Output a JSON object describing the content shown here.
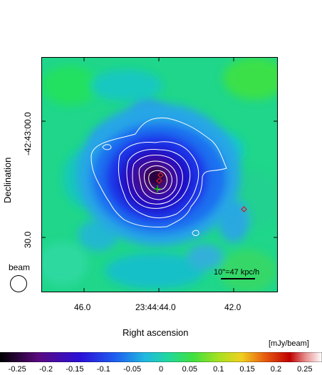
{
  "chart_data": {
    "type": "heatmap",
    "xlabel": "Right ascension",
    "ylabel": "Declination",
    "x_ticks": [
      "46.0",
      "23:44:44.0",
      "42.0"
    ],
    "y_ticks": [
      "-42:43:00.0",
      "30.0"
    ],
    "colorbar": {
      "unit": "[mJy/beam]",
      "ticks": [
        -0.25,
        -0.2,
        -0.15,
        -0.1,
        -0.05,
        0,
        0.05,
        0.1,
        0.15,
        0.2,
        0.25
      ],
      "tick_labels": [
        "-0.25",
        "-0.2",
        "-0.15",
        "-0.1",
        "-0.05",
        "0",
        "0.05",
        "0.1",
        "0.15",
        "0.2",
        "0.25"
      ],
      "range": [
        -0.28,
        0.28
      ]
    },
    "beam_label": "beam",
    "scale_bar_label": "10\"=47 kpc/h",
    "colors": {
      "background": "#00dd70",
      "contour": "#ffffff",
      "marker_cross": "#00bb00",
      "marker_diamond": "#cc2222"
    }
  }
}
